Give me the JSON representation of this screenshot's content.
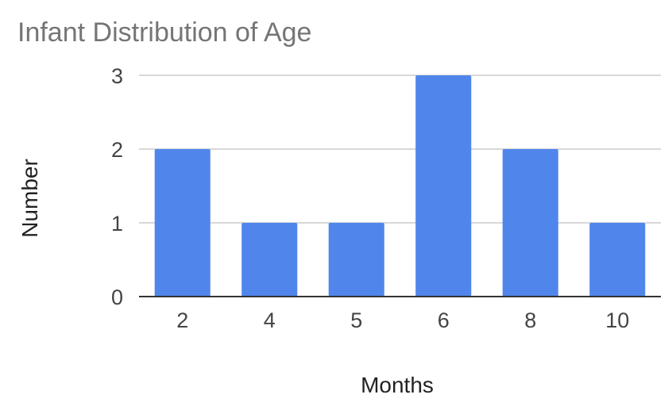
{
  "chart_data": {
    "type": "bar",
    "title": "Infant Distribution of Age",
    "xlabel": "Months",
    "ylabel": "Number",
    "categories": [
      "2",
      "4",
      "5",
      "6",
      "8",
      "10"
    ],
    "values": [
      2,
      1,
      1,
      3,
      2,
      1
    ],
    "ylim": [
      0,
      3
    ],
    "yticks": [
      "0",
      "1",
      "2",
      "3"
    ],
    "grid": true,
    "legend": "none",
    "bar_color": "#5086EC"
  }
}
